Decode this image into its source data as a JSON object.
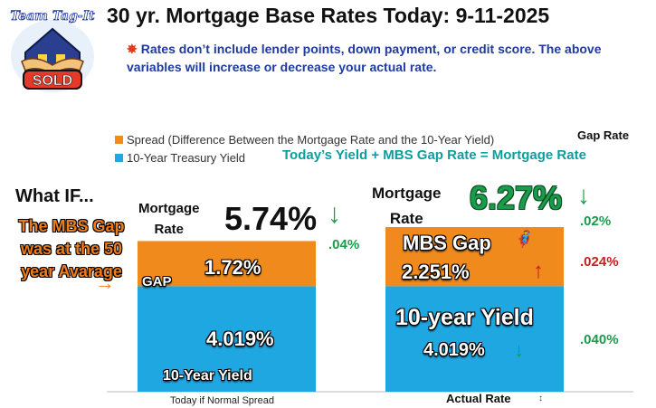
{
  "header": {
    "logo_text_top": "Team Tag-It",
    "logo_text_bottom": "SOLD",
    "title": "30 yr. Mortgage Base Rates Today: 9-11-2025",
    "subtitle_icon": "burst-icon",
    "subtitle": "Rates don’t include lender points, down payment, or credit score. The above variables will increase or decrease your actual rate."
  },
  "colors": {
    "spread": "#f08a1c",
    "yield": "#1ea7e1",
    "up": "#c81e1e",
    "down": "#1a9c4a",
    "note": "#f07d1a",
    "formula": "#0c9e9e"
  },
  "annotations": {
    "gap_rate_label": "Gap Rate",
    "formula": "Today’s  Yield +  MBS Gap Rate = Mortgage Rate",
    "what_if": "What IF...",
    "mbs_note": "The MBS Gap was at the 50 year Avarage",
    "note_arrow": "→",
    "gap_label": "GAP",
    "mbs_gap_label": "MBS Gap",
    "mbs_emoji": "🦸",
    "yield_label_left": "10-Year Yield",
    "yield_label_right": "10-year Yield",
    "mortgage_label_line1": "Mortgage",
    "mortgage_label_line2": "Rate",
    "rate_left": "5.74%",
    "rate_right": "6.27%",
    "arrow_down": "↓",
    "arrow_up": "↑",
    "change_left": ".04%",
    "change_right_rate": ".02%",
    "change_right_gap": ".024%",
    "change_right_yield": ".040%",
    "spread_left_label": "1.72%",
    "spread_right_label": "2.251%",
    "yield_left_label": "4.019%",
    "yield_right_label": "4.019%",
    "cat_mark": "↕"
  },
  "chart_data": {
    "type": "bar",
    "stacked": true,
    "categories": [
      "Today if Normal Spread",
      "Actual Rate"
    ],
    "series": [
      {
        "name": "10-Year Treasury Yield",
        "values": [
          4.019,
          4.019
        ]
      },
      {
        "name": "Spread (Difference Between the Mortgage Rate and the 10-Year Yield)",
        "values": [
          1.72,
          2.251
        ]
      }
    ],
    "totals": [
      5.74,
      6.27
    ],
    "ylim": [
      0,
      6.27
    ],
    "legend": "top-left",
    "grid": false
  }
}
